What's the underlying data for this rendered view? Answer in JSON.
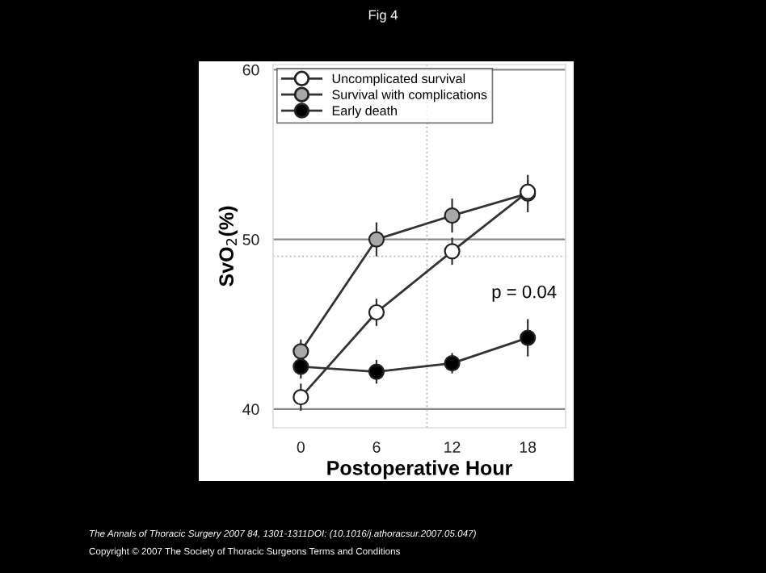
{
  "chart_data": {
    "type": "line",
    "title": "Fig 4",
    "xlabel": "Postoperative Hour",
    "ylabel": "SvO$_{2}$(%)",
    "x": [
      0,
      6,
      12,
      18
    ],
    "xlim": [
      -2.2,
      21
    ],
    "xticks": [
      0,
      6,
      12,
      18
    ],
    "ylim": [
      38.9,
      60.3
    ],
    "yticks": [
      40,
      50,
      60
    ],
    "grid": "y",
    "legend": "top left",
    "marker": "circle",
    "line_style": "solid",
    "series": [
      {
        "name": "Uncomplicated survival",
        "color": "#ffffff",
        "values": [
          40.7,
          45.7,
          49.3,
          52.8
        ],
        "errors": [
          0.8,
          0.8,
          0.8,
          0.7
        ]
      },
      {
        "name": "Survival with complications",
        "color": "#a8a8a8",
        "values": [
          43.4,
          50.0,
          51.4,
          52.7
        ],
        "errors": [
          0.7,
          1.0,
          1.0,
          1.1
        ]
      },
      {
        "name": "Early death",
        "color": "#000000",
        "values": [
          42.5,
          42.2,
          42.7,
          44.2
        ],
        "errors": [
          0.7,
          0.7,
          0.6,
          1.1
        ]
      }
    ],
    "ref_lines": [
      {
        "axis": "x",
        "value": 10,
        "label": null,
        "color": "#bbbbbb",
        "line_style": "dotted"
      },
      {
        "axis": "y",
        "value": 49,
        "label": null,
        "color": "#bbbbbb",
        "line_style": "dotted"
      }
    ],
    "annotations": [
      "p = 0.04",
      "The Annals of Thoracic Surgery 2007 84, 1301-1311DOI: (10.1016/j.athoracsur.2007.05.047)",
      "Copyright © 2007 The Society of Thoracic Surgeons Terms and Conditions"
    ]
  }
}
